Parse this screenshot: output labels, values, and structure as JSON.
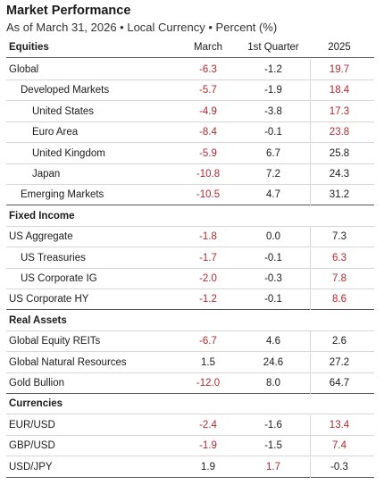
{
  "title": "Market Performance",
  "subtitle": "As of March 31, 2026 • Local Currency • Percent (%)",
  "header": {
    "category": "Equities",
    "col1": "March",
    "col2": "1st Quarter",
    "col3": "2025"
  },
  "colors": {
    "negative": "#b2282e",
    "text": "#1a1a1a"
  },
  "rows": [
    {
      "label": "Global",
      "indent": 0,
      "values": [
        "-6.3",
        "-1.2",
        "19.7"
      ],
      "red": [
        true,
        false,
        true
      ]
    },
    {
      "label": "Developed Markets",
      "indent": 1,
      "values": [
        "-5.7",
        "-1.9",
        "18.4"
      ],
      "red": [
        true,
        false,
        true
      ]
    },
    {
      "label": "United States",
      "indent": 2,
      "values": [
        "-4.9",
        "-3.8",
        "17.3"
      ],
      "red": [
        true,
        false,
        true
      ]
    },
    {
      "label": "Euro Area",
      "indent": 2,
      "values": [
        "-8.4",
        "-0.1",
        "23.8"
      ],
      "red": [
        true,
        false,
        true
      ]
    },
    {
      "label": "United Kingdom",
      "indent": 2,
      "values": [
        "-5.9",
        "6.7",
        "25.8"
      ],
      "red": [
        true,
        false,
        false
      ]
    },
    {
      "label": "Japan",
      "indent": 2,
      "values": [
        "-10.8",
        "7.2",
        "24.3"
      ],
      "red": [
        true,
        false,
        false
      ]
    },
    {
      "label": "Emerging Markets",
      "indent": 1,
      "values": [
        "-10.5",
        "4.7",
        "31.2"
      ],
      "red": [
        true,
        false,
        false
      ],
      "end": true
    },
    {
      "label": "Fixed Income",
      "section": true
    },
    {
      "label": "US Aggregate",
      "indent": 0,
      "values": [
        "-1.8",
        "0.0",
        "7.3"
      ],
      "red": [
        true,
        false,
        false
      ]
    },
    {
      "label": "US Treasuries",
      "indent": 1,
      "values": [
        "-1.7",
        "-0.1",
        "6.3"
      ],
      "red": [
        true,
        false,
        true
      ]
    },
    {
      "label": "US Corporate IG",
      "indent": 1,
      "values": [
        "-2.0",
        "-0.3",
        "7.8"
      ],
      "red": [
        true,
        false,
        true
      ]
    },
    {
      "label": "US Corporate HY",
      "indent": 0,
      "values": [
        "-1.2",
        "-0.1",
        "8.6"
      ],
      "red": [
        true,
        false,
        true
      ],
      "end": true
    },
    {
      "label": "Real Assets",
      "section": true
    },
    {
      "label": "Global Equity REITs",
      "indent": 0,
      "values": [
        "-6.7",
        "4.6",
        "2.6"
      ],
      "red": [
        true,
        false,
        false
      ]
    },
    {
      "label": "Global Natural Resources",
      "indent": 0,
      "values": [
        "1.5",
        "24.6",
        "27.2"
      ],
      "red": [
        false,
        false,
        false
      ]
    },
    {
      "label": "Gold Bullion",
      "indent": 0,
      "values": [
        "-12.0",
        "8.0",
        "64.7"
      ],
      "red": [
        true,
        false,
        false
      ],
      "end": true
    },
    {
      "label": "Currencies",
      "section": true
    },
    {
      "label": "EUR/USD",
      "indent": 0,
      "values": [
        "-2.4",
        "-1.6",
        "13.4"
      ],
      "red": [
        true,
        false,
        true
      ]
    },
    {
      "label": "GBP/USD",
      "indent": 0,
      "values": [
        "-1.9",
        "-1.5",
        "7.4"
      ],
      "red": [
        true,
        false,
        true
      ]
    },
    {
      "label": "USD/JPY",
      "indent": 0,
      "values": [
        "1.9",
        "1.7",
        "-0.3"
      ],
      "red": [
        false,
        true,
        false
      ],
      "end": true
    }
  ]
}
